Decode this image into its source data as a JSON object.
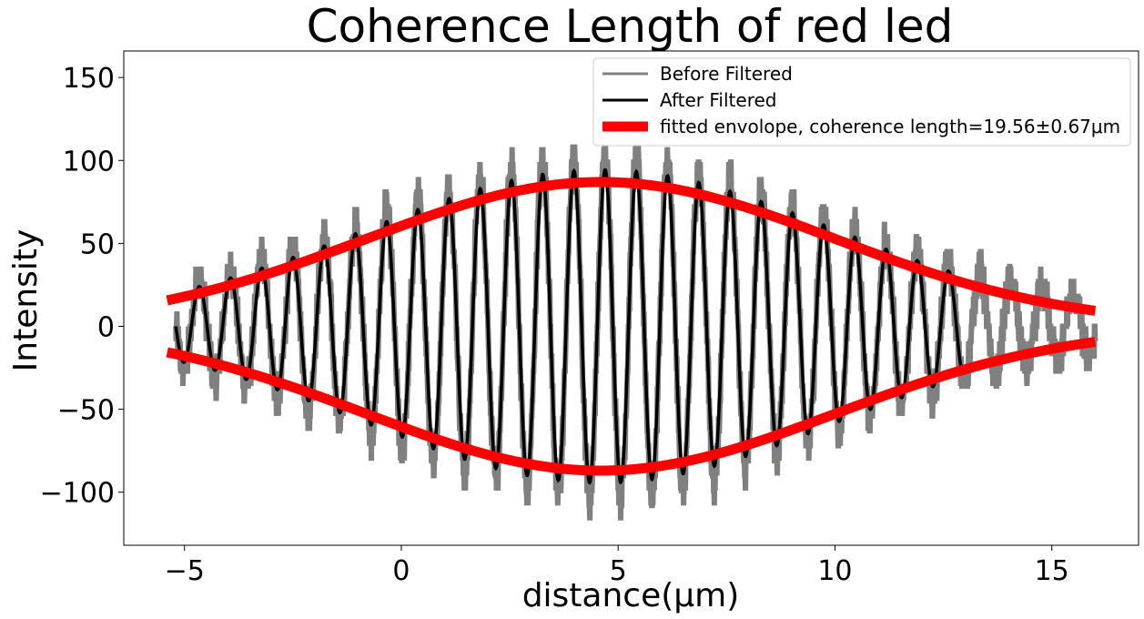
{
  "chart_data": {
    "type": "line",
    "title": "Coherence Length of red led",
    "xlabel": "distance(μm)",
    "ylabel": "Intensity",
    "xlim": [
      -6.4,
      17.0
    ],
    "ylim": [
      -132,
      166
    ],
    "xticks": [
      -5,
      0,
      5,
      10,
      15
    ],
    "yticks": [
      -100,
      -50,
      0,
      50,
      100,
      150
    ],
    "xtick_labels": [
      "−5",
      "0",
      "5",
      "10",
      "15"
    ],
    "ytick_labels": [
      "−100",
      "−50",
      "0",
      "50",
      "100",
      "150"
    ],
    "grid": false,
    "legend_position": "top-right",
    "series": [
      {
        "name": "Before Filtered",
        "color": "#808080",
        "style": "raw noisy interference signal",
        "x_range": [
          -5.2,
          16.0
        ],
        "period": 0.72,
        "peak_position": 4.7
      },
      {
        "name": "After Filtered",
        "color": "#000000",
        "style": "smoothed interference signal",
        "x_range": [
          -5.2,
          12.9
        ],
        "period": 0.72,
        "peak_position": 4.7
      },
      {
        "name": "fitted envolope, coherence length=19.56±0.67μm",
        "color": "#ff0000",
        "type": "gaussian envelope (±)",
        "amplitude": 87,
        "center": 4.6,
        "sigma": 5.4,
        "x_range": [
          -5.4,
          16.0
        ]
      }
    ]
  }
}
